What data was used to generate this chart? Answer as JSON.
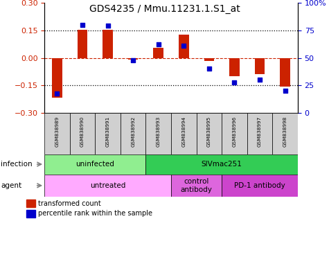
{
  "title": "GDS4235 / Mmu.11231.1.S1_at",
  "samples": [
    "GSM838989",
    "GSM838990",
    "GSM838991",
    "GSM838992",
    "GSM838993",
    "GSM838994",
    "GSM838995",
    "GSM838996",
    "GSM838997",
    "GSM838998"
  ],
  "red_values": [
    -0.215,
    0.152,
    0.153,
    -0.01,
    0.055,
    0.125,
    -0.015,
    -0.1,
    -0.09,
    -0.155
  ],
  "blue_percentiles": [
    18,
    80,
    79,
    48,
    62,
    61,
    40,
    28,
    30,
    20
  ],
  "ylim_left": [
    -0.3,
    0.3
  ],
  "ylim_right": [
    0,
    100
  ],
  "yticks_left": [
    -0.3,
    -0.15,
    0.0,
    0.15,
    0.3
  ],
  "yticks_right": [
    0,
    25,
    50,
    75,
    100
  ],
  "infection_groups": [
    {
      "label": "uninfected",
      "start": 0,
      "end": 4,
      "color": "#90EE90"
    },
    {
      "label": "SIVmac251",
      "start": 4,
      "end": 10,
      "color": "#33CC55"
    }
  ],
  "agent_groups": [
    {
      "label": "untreated",
      "start": 0,
      "end": 5,
      "color": "#FFAAFF"
    },
    {
      "label": "control\nantibody",
      "start": 5,
      "end": 7,
      "color": "#DD66DD"
    },
    {
      "label": "PD-1 antibody",
      "start": 7,
      "end": 10,
      "color": "#CC44CC"
    }
  ],
  "bar_color": "#CC2200",
  "dot_color": "#0000CC",
  "bar_width": 0.4,
  "dot_size": 22,
  "title_fontsize": 10,
  "infection_label": "infection",
  "agent_label": "agent"
}
